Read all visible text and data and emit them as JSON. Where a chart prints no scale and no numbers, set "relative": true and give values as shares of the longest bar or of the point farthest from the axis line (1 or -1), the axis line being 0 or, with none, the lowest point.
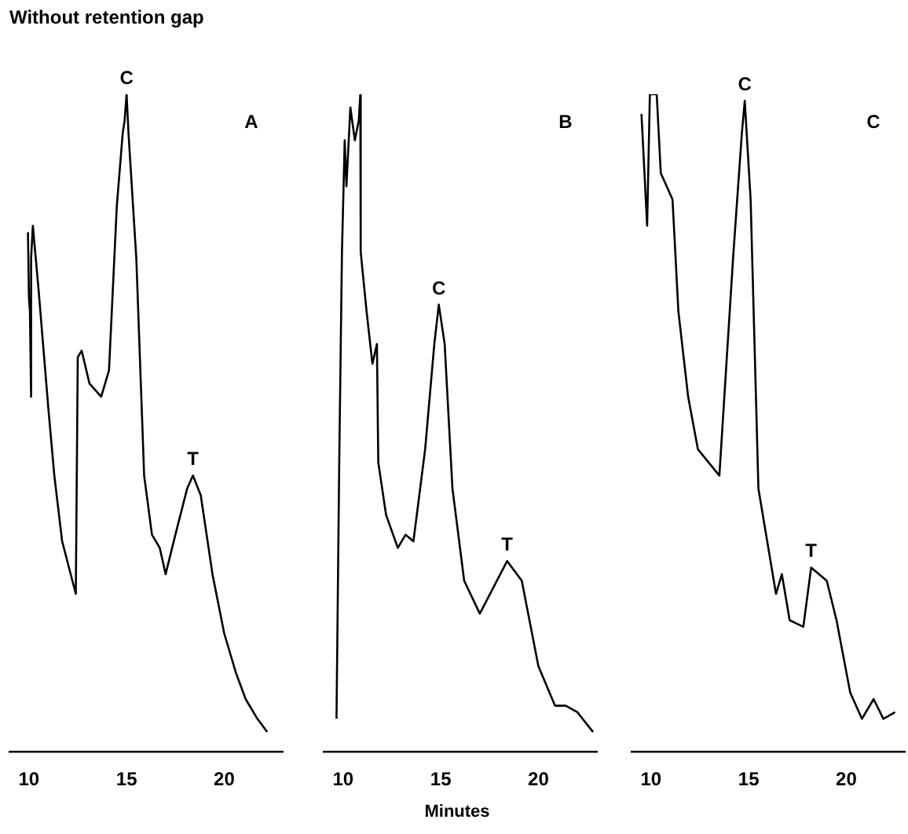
{
  "chart_data": [
    {
      "type": "line",
      "title": "Without retention gap",
      "relative": true,
      "color": "#000000",
      "xlim": [
        9,
        23
      ],
      "xticks": [
        10,
        15,
        20
      ],
      "x": [
        9.95,
        10.0,
        10.05,
        10.1,
        10.12,
        10.2,
        10.5,
        11.0,
        11.3,
        11.7,
        12.4,
        12.5,
        12.7,
        13.1,
        13.7,
        14.1,
        14.5,
        14.8,
        14.9,
        15.0,
        15.1,
        15.5,
        15.9,
        16.3,
        16.7,
        17.0,
        17.5,
        18.1,
        18.4,
        18.8,
        19.4,
        20.0,
        20.6,
        21.1,
        21.7,
        22.2
      ],
      "values": [
        0.79,
        0.69,
        0.67,
        0.54,
        0.75,
        0.8,
        0.7,
        0.52,
        0.42,
        0.32,
        0.24,
        0.6,
        0.61,
        0.56,
        0.54,
        0.58,
        0.83,
        0.94,
        0.96,
        1,
        0.94,
        0.75,
        0.42,
        0.33,
        0.31,
        0.27,
        0.33,
        0.4,
        0.42,
        0.39,
        0.27,
        0.18,
        0.12,
        0.08,
        0.05,
        0.03
      ],
      "annotations": [
        "A",
        {
          "text": "C",
          "x": 15.0,
          "y": 1
        },
        {
          "text": "T",
          "x": 18.4,
          "y": 0.42
        }
      ]
    },
    {
      "type": "line",
      "xlabel": "Minutes",
      "relative": true,
      "color": "#000000",
      "xlim": [
        9,
        23
      ],
      "xticks": [
        10,
        15,
        20
      ],
      "x": [
        9.66,
        9.8,
        9.94,
        10.08,
        10.17,
        10.37,
        10.6,
        10.8,
        10.88,
        10.9,
        11.2,
        11.5,
        11.73,
        11.8,
        12.2,
        12.8,
        13.2,
        13.6,
        14.2,
        14.67,
        14.9,
        15.2,
        15.6,
        16.2,
        17.0,
        17.7,
        18.4,
        19.15,
        20.0,
        20.85,
        21.4,
        22.0,
        22.8
      ],
      "values": [
        0.05,
        0.44,
        0.76,
        0.93,
        0.86,
        0.98,
        0.93,
        0.96,
        1,
        0.76,
        0.67,
        0.59,
        0.62,
        0.44,
        0.36,
        0.31,
        0.33,
        0.32,
        0.46,
        0.62,
        0.68,
        0.62,
        0.4,
        0.26,
        0.21,
        0.25,
        0.29,
        0.26,
        0.13,
        0.07,
        0.07,
        0.06,
        0.03
      ],
      "annotations": [
        "B",
        {
          "text": "C",
          "x": 14.9,
          "y": 0.68
        },
        {
          "text": "T",
          "x": 18.4,
          "y": 0.29
        }
      ]
    },
    {
      "type": "line",
      "relative": true,
      "color": "#000000",
      "xlim": [
        9,
        23
      ],
      "xticks": [
        10,
        15,
        20
      ],
      "x": [
        9.51,
        9.8,
        9.94,
        10.29,
        10.5,
        11.1,
        11.4,
        11.9,
        12.4,
        13.5,
        14.2,
        14.65,
        14.8,
        15.1,
        15.5,
        16.4,
        16.7,
        17.1,
        17.8,
        18.2,
        19.0,
        19.5,
        20.2,
        20.8,
        21.4,
        21.9,
        22.5
      ],
      "values": [
        0.97,
        0.8,
        1,
        1,
        0.88,
        0.84,
        0.67,
        0.54,
        0.46,
        0.42,
        0.75,
        0.94,
        0.99,
        0.84,
        0.4,
        0.24,
        0.27,
        0.2,
        0.19,
        0.28,
        0.26,
        0.2,
        0.09,
        0.05,
        0.08,
        0.05,
        0.06
      ],
      "annotations": [
        "C",
        {
          "text": "C",
          "x": 14.8,
          "y": 0.99
        },
        {
          "text": "T",
          "x": 18.2,
          "y": 0.28
        }
      ]
    }
  ]
}
